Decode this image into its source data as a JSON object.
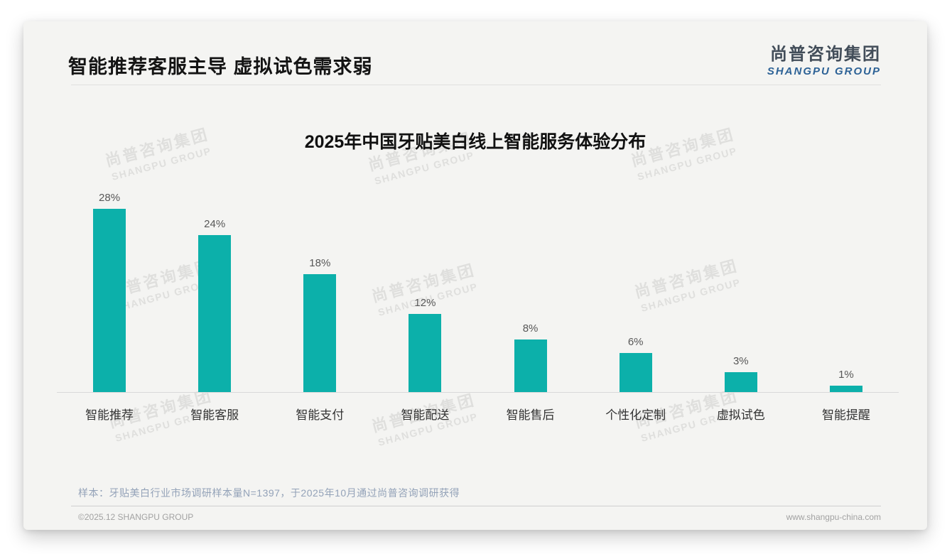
{
  "page": {
    "header": {
      "title": "智能推荐客服主导 虚拟试色需求弱"
    },
    "logo": {
      "cn": "尚普咨询集团",
      "en": "SHANGPU GROUP"
    },
    "watermark": {
      "cn": "尚普咨询集团",
      "en": "SHANGPU GROUP"
    },
    "note": "样本：牙贴美白行业市场调研样本量N=1397，于2025年10月通过尚普咨询调研获得",
    "footer": {
      "left": "©2025.12 SHANGPU GROUP",
      "right": "www.shangpu-china.com"
    }
  },
  "chart_data": {
    "type": "bar",
    "title": "2025年中国牙贴美白线上智能服务体验分布",
    "categories": [
      "智能推荐",
      "智能客服",
      "智能支付",
      "智能配送",
      "智能售后",
      "个性化定制",
      "虚拟试色",
      "智能提醒"
    ],
    "values": [
      28,
      24,
      18,
      12,
      8,
      6,
      3,
      1
    ],
    "value_labels": [
      "28%",
      "24%",
      "18%",
      "12%",
      "8%",
      "6%",
      "3%",
      "1%"
    ],
    "unit": "%",
    "bar_color": "#0cb0aa",
    "xlabel": "",
    "ylabel": "",
    "ylim": [
      0,
      30
    ],
    "grid": false,
    "legend": false
  }
}
